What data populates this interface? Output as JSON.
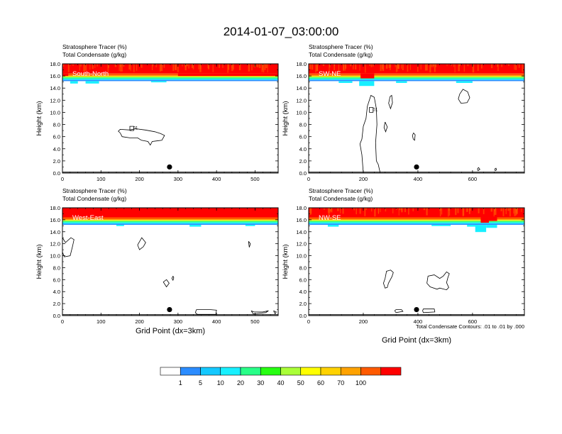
{
  "title": "2014-01-07_03:00:00",
  "panel_header": {
    "line1": "Stratosphere Tracer",
    "unit1": "(%)",
    "line2": "Total Condensate",
    "unit2": "(g/kg)"
  },
  "ylabel": "Height (km)",
  "xlabel": "Grid Point (dx=3km)",
  "contour_note": "Total Condensate Contours: .01 to .01 by .000",
  "colorbar": {
    "colors": [
      "#ffffff",
      "#2b8cff",
      "#14c8ff",
      "#18f0ff",
      "#28ff88",
      "#27ff12",
      "#aaff37",
      "#ffff00",
      "#ffd200",
      "#ffa200",
      "#ff5a00",
      "#ff0000"
    ],
    "labels": [
      "1",
      "5",
      "10",
      "20",
      "30",
      "40",
      "50",
      "60",
      "70",
      "100"
    ]
  },
  "chart_data": [
    {
      "type": "heatmap",
      "name": "South-North",
      "xticks": [
        "0",
        "100",
        "200",
        "300",
        "400",
        "500"
      ],
      "xlim": [
        0,
        560
      ],
      "ylim": [
        0,
        18
      ],
      "yticks": [
        "0.0",
        "2.0",
        "4.0",
        "6.0",
        "8.0",
        "10.0",
        "12.0",
        "14.0",
        "16.0",
        "18.0"
      ],
      "tracer_top_km": 18,
      "tracer_base_km": 15.6,
      "contour_labels": [
        {
          "text": "01",
          "x": 180,
          "y": 7.5
        }
      ],
      "marker": {
        "x": 278,
        "y": 1.0
      }
    },
    {
      "type": "heatmap",
      "name": "SW-NE",
      "xticks": [
        "0",
        "200",
        "400",
        "600"
      ],
      "xlim": [
        0,
        790
      ],
      "ylim": [
        0,
        18
      ],
      "yticks": [
        "0.0",
        "2.0",
        "4.0",
        "6.0",
        "8.0",
        "10.0",
        "12.0",
        "14.0",
        "16.0",
        "18.0"
      ],
      "tracer_top_km": 18,
      "tracer_base_km": 15.6,
      "contour_labels": [
        {
          "text": "01",
          "x": 230,
          "y": 10.5
        }
      ],
      "marker": {
        "x": 395,
        "y": 1.0
      }
    },
    {
      "type": "heatmap",
      "name": "West-East",
      "xticks": [
        "0",
        "100",
        "200",
        "300",
        "400",
        "500"
      ],
      "xlim": [
        0,
        560
      ],
      "ylim": [
        0,
        18
      ],
      "yticks": [
        "0.0",
        "2.0",
        "4.0",
        "6.0",
        "8.0",
        "10.0",
        "12.0",
        "14.0",
        "16.0",
        "18.0"
      ],
      "tracer_top_km": 18,
      "tracer_base_km": 15.6,
      "contour_labels": [],
      "marker": {
        "x": 278,
        "y": 1.0
      }
    },
    {
      "type": "heatmap",
      "name": "NW-SE",
      "xticks": [
        "0",
        "200",
        "400",
        "600"
      ],
      "xlim": [
        0,
        790
      ],
      "ylim": [
        0,
        18
      ],
      "yticks": [
        "0.0",
        "2.0",
        "4.0",
        "6.0",
        "8.0",
        "10.0",
        "12.0",
        "14.0",
        "16.0",
        "18.0"
      ],
      "tracer_top_km": 18,
      "tracer_base_km": 15.6,
      "contour_labels": [],
      "marker": {
        "x": 395,
        "y": 1.0
      }
    }
  ]
}
